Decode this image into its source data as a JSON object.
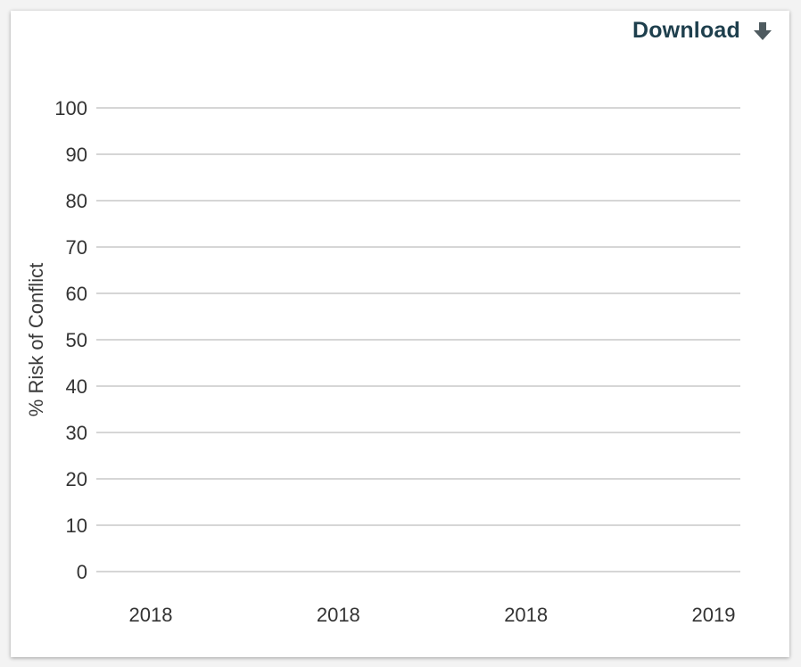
{
  "download": {
    "label": "Download",
    "icon": "arrow-down-icon",
    "color": "#1e3f4d"
  },
  "chart_data": {
    "type": "line",
    "title": "",
    "ylabel": "% Risk of Conflict",
    "xlabel": "",
    "ylim": [
      0,
      100
    ],
    "y_ticks": [
      0,
      10,
      20,
      30,
      40,
      50,
      60,
      70,
      80,
      90,
      100
    ],
    "x_tick_labels": [
      "2018",
      "2018",
      "2018",
      "2019"
    ],
    "grid": true,
    "series": []
  }
}
